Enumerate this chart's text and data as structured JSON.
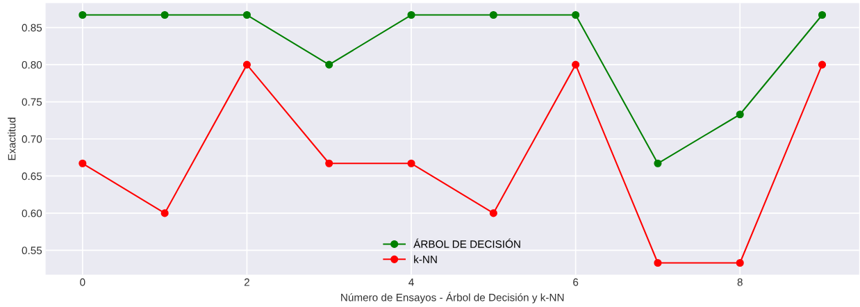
{
  "chart_data": {
    "type": "line",
    "xlabel": "Número de Ensayos - Árbol de Decisión y k-NN",
    "ylabel": "Exactitud",
    "x": [
      0,
      1,
      2,
      3,
      4,
      5,
      6,
      7,
      8,
      9
    ],
    "series": [
      {
        "name": "ÁRBOL DE DECISIÓN",
        "color": "#008000",
        "values": [
          0.867,
          0.867,
          0.867,
          0.8,
          0.867,
          0.867,
          0.867,
          0.667,
          0.733,
          0.867
        ]
      },
      {
        "name": "k-NN",
        "color": "#ff0000",
        "values": [
          0.667,
          0.6,
          0.8,
          0.667,
          0.667,
          0.6,
          0.8,
          0.533,
          0.533,
          0.8
        ]
      }
    ],
    "xlim": [
      -0.45,
      9.45
    ],
    "ylim": [
      0.517,
      0.883
    ],
    "xticks": [
      0,
      2,
      4,
      6,
      8
    ],
    "yticks": [
      0.55,
      {
        "value": 0.6,
        "label": "0.60"
      },
      0.65,
      {
        "value": 0.7,
        "label": "0.70"
      },
      0.75,
      {
        "value": 0.8,
        "label": "0.80"
      },
      0.85
    ],
    "grid": true,
    "legend": "lower center",
    "marker": "circle",
    "line_style": "solid"
  }
}
